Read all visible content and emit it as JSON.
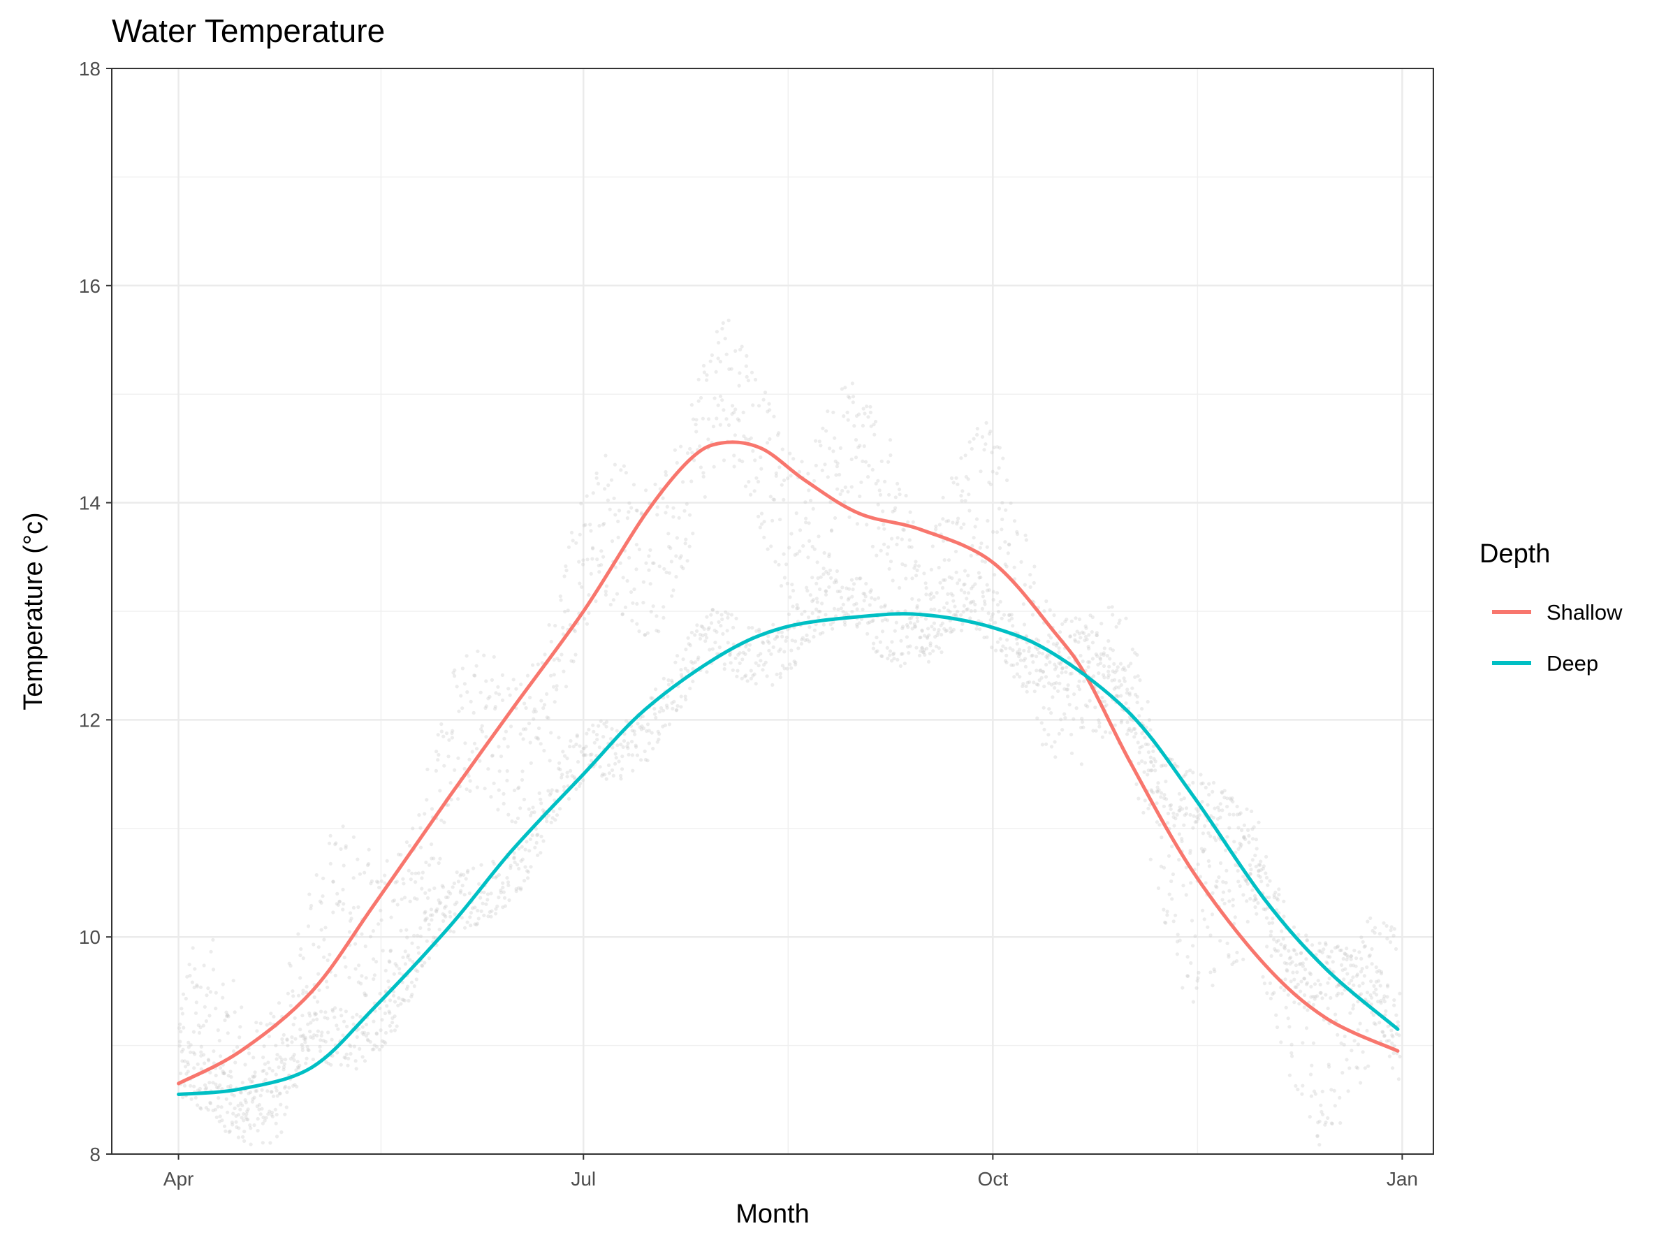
{
  "chart_data": {
    "type": "line",
    "title": "Water Temperature",
    "xlabel": "Month",
    "ylabel": "Temperature (°c)",
    "x_unit": "date",
    "xlim": [
      "2019-03-17",
      "2020-01-08"
    ],
    "ylim": [
      8,
      18
    ],
    "y_ticks": [
      8,
      10,
      12,
      14,
      16,
      18
    ],
    "x_ticks": [
      {
        "date": "2019-04-01",
        "label": "Apr"
      },
      {
        "date": "2019-07-01",
        "label": "Jul"
      },
      {
        "date": "2019-10-01",
        "label": "Oct"
      },
      {
        "date": "2020-01-01",
        "label": "Jan"
      }
    ],
    "grid": true,
    "legend": {
      "title": "Depth",
      "position": "right"
    },
    "series": [
      {
        "name": "Shallow",
        "color": "#F8766D",
        "points": [
          [
            "2019-04-01",
            8.65
          ],
          [
            "2019-04-15",
            8.95
          ],
          [
            "2019-05-01",
            9.5
          ],
          [
            "2019-05-15",
            10.3
          ],
          [
            "2019-06-01",
            11.3
          ],
          [
            "2019-06-15",
            12.1
          ],
          [
            "2019-07-01",
            13.0
          ],
          [
            "2019-07-15",
            13.9
          ],
          [
            "2019-07-25",
            14.4
          ],
          [
            "2019-08-01",
            14.55
          ],
          [
            "2019-08-10",
            14.5
          ],
          [
            "2019-08-20",
            14.2
          ],
          [
            "2019-09-01",
            13.9
          ],
          [
            "2019-09-15",
            13.75
          ],
          [
            "2019-10-01",
            13.45
          ],
          [
            "2019-10-15",
            12.8
          ],
          [
            "2019-10-22",
            12.4
          ],
          [
            "2019-11-01",
            11.6
          ],
          [
            "2019-11-15",
            10.6
          ],
          [
            "2019-12-01",
            9.75
          ],
          [
            "2019-12-15",
            9.25
          ],
          [
            "2019-12-31",
            8.95
          ]
        ]
      },
      {
        "name": "Deep",
        "color": "#00BFC4",
        "points": [
          [
            "2019-04-01",
            8.55
          ],
          [
            "2019-04-15",
            8.6
          ],
          [
            "2019-05-01",
            8.8
          ],
          [
            "2019-05-15",
            9.35
          ],
          [
            "2019-06-01",
            10.1
          ],
          [
            "2019-06-15",
            10.8
          ],
          [
            "2019-07-01",
            11.5
          ],
          [
            "2019-07-15",
            12.1
          ],
          [
            "2019-08-01",
            12.6
          ],
          [
            "2019-08-15",
            12.85
          ],
          [
            "2019-09-01",
            12.95
          ],
          [
            "2019-09-15",
            12.97
          ],
          [
            "2019-10-01",
            12.85
          ],
          [
            "2019-10-15",
            12.6
          ],
          [
            "2019-11-01",
            12.05
          ],
          [
            "2019-11-15",
            11.3
          ],
          [
            "2019-12-01",
            10.35
          ],
          [
            "2019-12-15",
            9.7
          ],
          [
            "2019-12-31",
            9.15
          ]
        ]
      }
    ]
  }
}
